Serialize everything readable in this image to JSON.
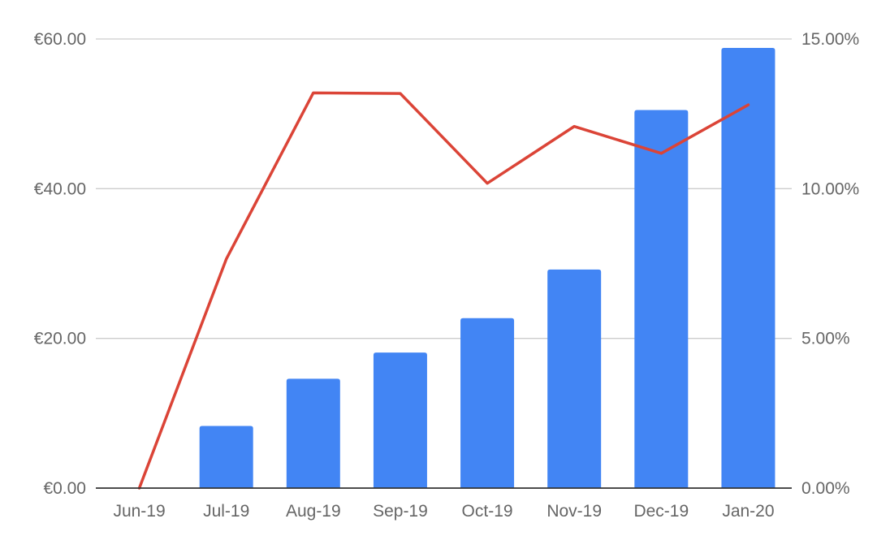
{
  "chart_data": {
    "type": "bar",
    "title": "",
    "xlabel": "",
    "ylabel": "",
    "categories": [
      "Jun-19",
      "Jul-19",
      "Aug-19",
      "Sep-19",
      "Oct-19",
      "Nov-19",
      "Dec-19",
      "Jan-20"
    ],
    "series": [
      {
        "type": "bar",
        "axis": "left",
        "color": "#4285F4",
        "values": [
          0,
          8.3,
          14.6,
          18.1,
          22.7,
          29.2,
          50.5,
          58.8
        ]
      },
      {
        "type": "line",
        "axis": "right",
        "color": "#DB4437",
        "values": [
          0,
          7.65,
          13.2,
          13.18,
          10.18,
          12.08,
          11.18,
          12.8
        ]
      }
    ],
    "left_axis": {
      "ylim": [
        0,
        60
      ],
      "ticks": [
        0,
        20,
        40,
        60
      ],
      "tick_labels": [
        "€0.00",
        "€20.00",
        "€40.00",
        "€60.00"
      ]
    },
    "right_axis": {
      "ylim": [
        0,
        15
      ],
      "ticks": [
        0,
        5,
        10,
        15
      ],
      "tick_labels": [
        "0.00%",
        "5.00%",
        "10.00%",
        "15.00%"
      ]
    },
    "grid": true,
    "legend": "none"
  }
}
